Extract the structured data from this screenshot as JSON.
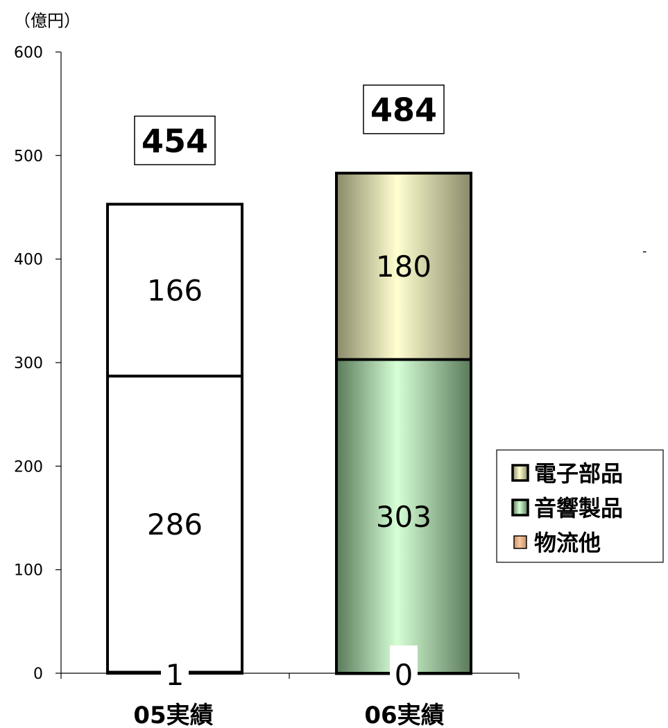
{
  "chart_data": {
    "type": "bar",
    "stacked": true,
    "unit_label": "（億円）",
    "categories": [
      "05実績",
      "06実績"
    ],
    "ylim": [
      0,
      600
    ],
    "yticks": [
      0,
      100,
      200,
      300,
      400,
      500,
      600
    ],
    "totals": [
      "454",
      "484"
    ],
    "series": [
      {
        "name": "物流他",
        "values": [
          1,
          0
        ],
        "labels": [
          "1",
          "0"
        ],
        "fill": [
          "#ffffff",
          "#ffffff"
        ],
        "gradient": [
          "#f6c9a0",
          "#c8906a"
        ]
      },
      {
        "name": "音響製品",
        "values": [
          286,
          303
        ],
        "labels": [
          "286",
          "303"
        ],
        "fill": [
          "#ffffff",
          "gradient"
        ],
        "gradient": [
          "#d6ffd6",
          "#5a7a5a"
        ]
      },
      {
        "name": "電子部品",
        "values": [
          166,
          180
        ],
        "labels": [
          "166",
          "180"
        ],
        "fill": [
          "#ffffff",
          "gradient"
        ],
        "gradient": [
          "#ffffd0",
          "#8a8a6a"
        ]
      }
    ],
    "legend": {
      "position": "right",
      "entries": [
        "電子部品",
        "音響製品",
        "物流他"
      ]
    },
    "grid": false
  }
}
